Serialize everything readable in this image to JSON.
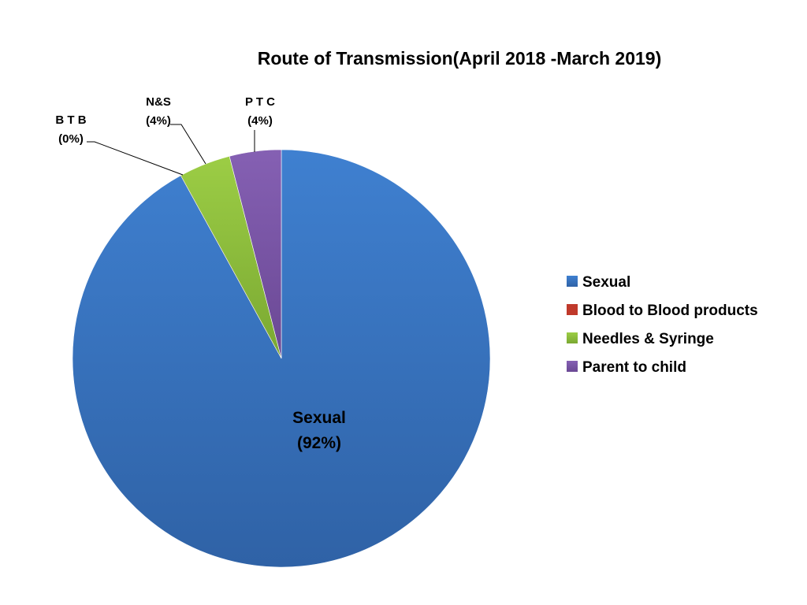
{
  "chart_data": {
    "type": "pie",
    "title": "Route of Transmission(April 2018 -March 2019)",
    "slices": [
      {
        "name": "Sexual",
        "short_label": "Sexual",
        "percent_label": "(92%)",
        "value": 92,
        "color": "#3a76c4"
      },
      {
        "name": "Blood to Blood products",
        "short_label": "B T B",
        "percent_label": "(0%)",
        "value": 0,
        "color": "#c0392b"
      },
      {
        "name": "Needles & Syringe",
        "short_label": "N&S",
        "percent_label": "(4%)",
        "value": 4,
        "color": "#8fbf3a"
      },
      {
        "name": "Parent to child",
        "short_label": "P T C",
        "percent_label": "(4%)",
        "value": 4,
        "color": "#7b55a6"
      }
    ],
    "legend_position": "right"
  }
}
